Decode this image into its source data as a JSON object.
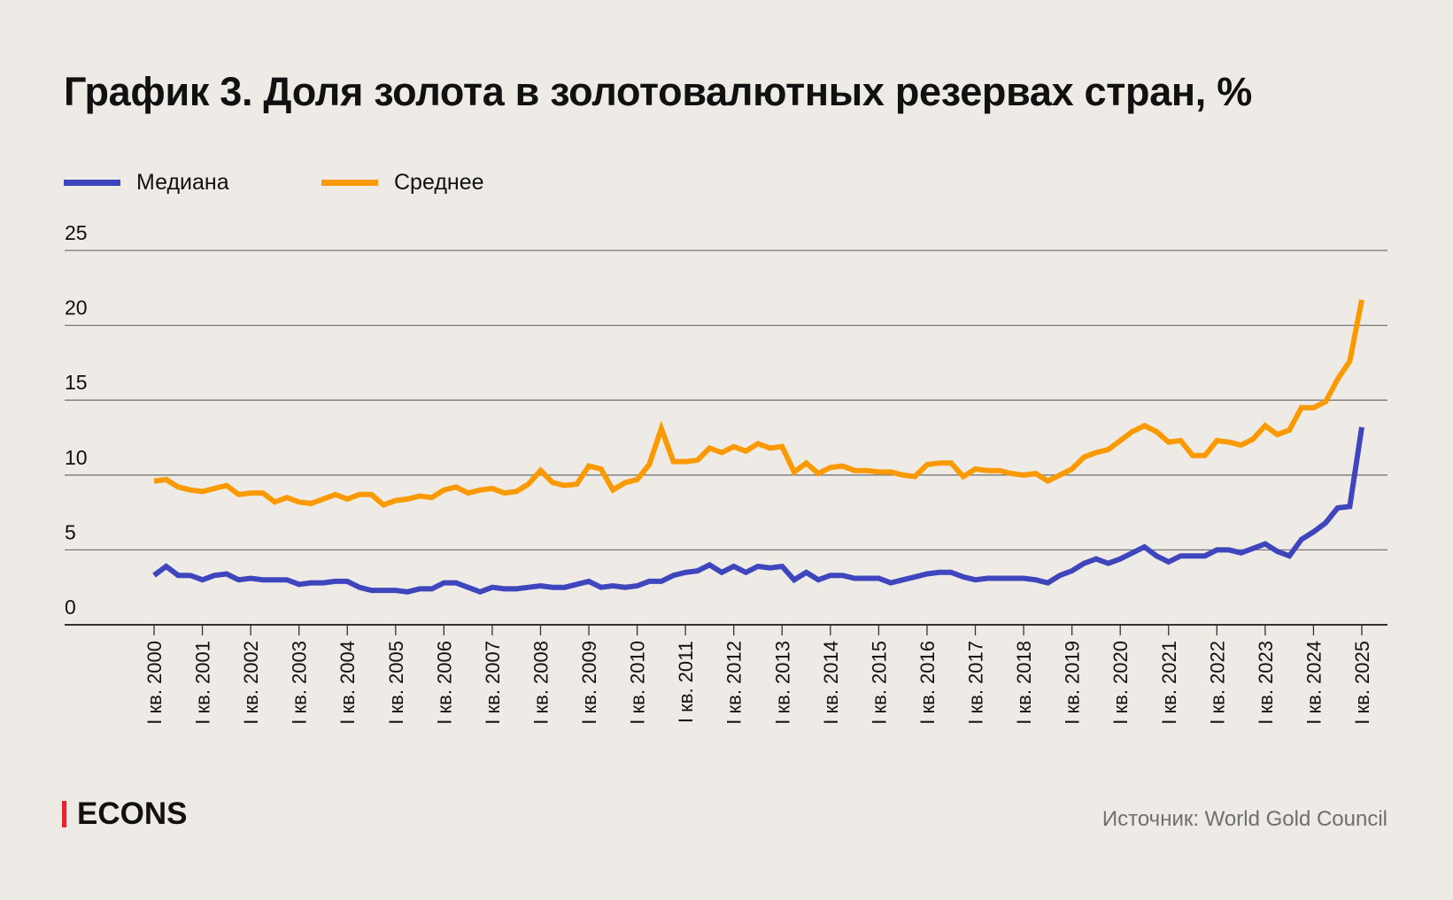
{
  "chart_data": {
    "type": "line",
    "title": "График 3. Доля золота в золотовалютных резервах стран, %",
    "xlabel": "",
    "ylabel": "",
    "ylim": [
      0,
      25
    ],
    "yticks": [
      0,
      5,
      10,
      15,
      20,
      25
    ],
    "grid": true,
    "legend_position": "top-left",
    "x_tick_labels": [
      "I кв. 2000",
      "I кв. 2001",
      "I кв. 2002",
      "I кв. 2003",
      "I кв. 2004",
      "I кв. 2005",
      "I кв. 2006",
      "I кв. 2007",
      "I кв. 2008",
      "I кв. 2009",
      "I кв. 2010",
      "I кв. 2011",
      "I кв. 2012",
      "I кв. 2013",
      "I кв. 2014",
      "I кв. 2015",
      "I кв. 2016",
      "I кв. 2017",
      "I кв. 2018",
      "I кв. 2019",
      "I кв. 2020",
      "I кв. 2021",
      "I кв. 2022",
      "I кв. 2023",
      "I кв. 2024",
      "I кв. 2025"
    ],
    "x_range": [
      "I кв. 2000",
      "I кв. 2025"
    ],
    "x_frequency": "quarterly",
    "series": [
      {
        "name": "Медиана",
        "color": "#3f45bd",
        "values": [
          3.3,
          3.9,
          3.3,
          3.3,
          3.0,
          3.3,
          3.4,
          3.0,
          3.1,
          3.0,
          3.0,
          3.0,
          2.7,
          2.8,
          2.8,
          2.9,
          2.9,
          2.5,
          2.3,
          2.3,
          2.3,
          2.2,
          2.4,
          2.4,
          2.8,
          2.8,
          2.5,
          2.2,
          2.5,
          2.4,
          2.4,
          2.5,
          2.6,
          2.5,
          2.5,
          2.7,
          2.9,
          2.5,
          2.6,
          2.5,
          2.6,
          2.9,
          2.9,
          3.3,
          3.5,
          3.6,
          4.0,
          3.5,
          3.9,
          3.5,
          3.9,
          3.8,
          3.9,
          3.0,
          3.5,
          3.0,
          3.3,
          3.3,
          3.1,
          3.1,
          3.1,
          2.8,
          3.0,
          3.2,
          3.4,
          3.5,
          3.5,
          3.2,
          3.0,
          3.1,
          3.1,
          3.1,
          3.1,
          3.0,
          2.8,
          3.3,
          3.6,
          4.1,
          4.4,
          4.1,
          4.4,
          4.8,
          5.2,
          4.6,
          4.2,
          4.6,
          4.6,
          4.6,
          5.0,
          5.0,
          4.8,
          5.1,
          5.4,
          4.9,
          4.6,
          5.7,
          6.2,
          6.8,
          7.8,
          7.9,
          13.2
        ]
      },
      {
        "name": "Среднее",
        "color": "#fb9a00",
        "values": [
          9.6,
          9.7,
          9.2,
          9.0,
          8.9,
          9.1,
          9.3,
          8.7,
          8.8,
          8.8,
          8.2,
          8.5,
          8.2,
          8.1,
          8.4,
          8.7,
          8.4,
          8.7,
          8.7,
          8.0,
          8.3,
          8.4,
          8.6,
          8.5,
          9.0,
          9.2,
          8.8,
          9.0,
          9.1,
          8.8,
          8.9,
          9.4,
          10.3,
          9.5,
          9.3,
          9.4,
          10.6,
          10.4,
          9.0,
          9.5,
          9.7,
          10.7,
          13.1,
          10.9,
          10.9,
          11.0,
          11.8,
          11.5,
          11.9,
          11.6,
          12.1,
          11.8,
          11.9,
          10.2,
          10.8,
          10.1,
          10.5,
          10.6,
          10.3,
          10.3,
          10.2,
          10.2,
          10.0,
          9.9,
          10.7,
          10.8,
          10.8,
          9.9,
          10.4,
          10.3,
          10.3,
          10.1,
          10.0,
          10.1,
          9.6,
          10.0,
          10.4,
          11.2,
          11.5,
          11.7,
          12.3,
          12.9,
          13.3,
          12.9,
          12.2,
          12.3,
          11.3,
          11.3,
          12.3,
          12.2,
          12.0,
          12.4,
          13.3,
          12.7,
          13.0,
          14.5,
          14.5,
          14.9,
          16.4,
          17.6,
          21.7
        ]
      }
    ]
  },
  "footer": {
    "logo": "ECONS",
    "source": "Источник: World Gold Council"
  }
}
